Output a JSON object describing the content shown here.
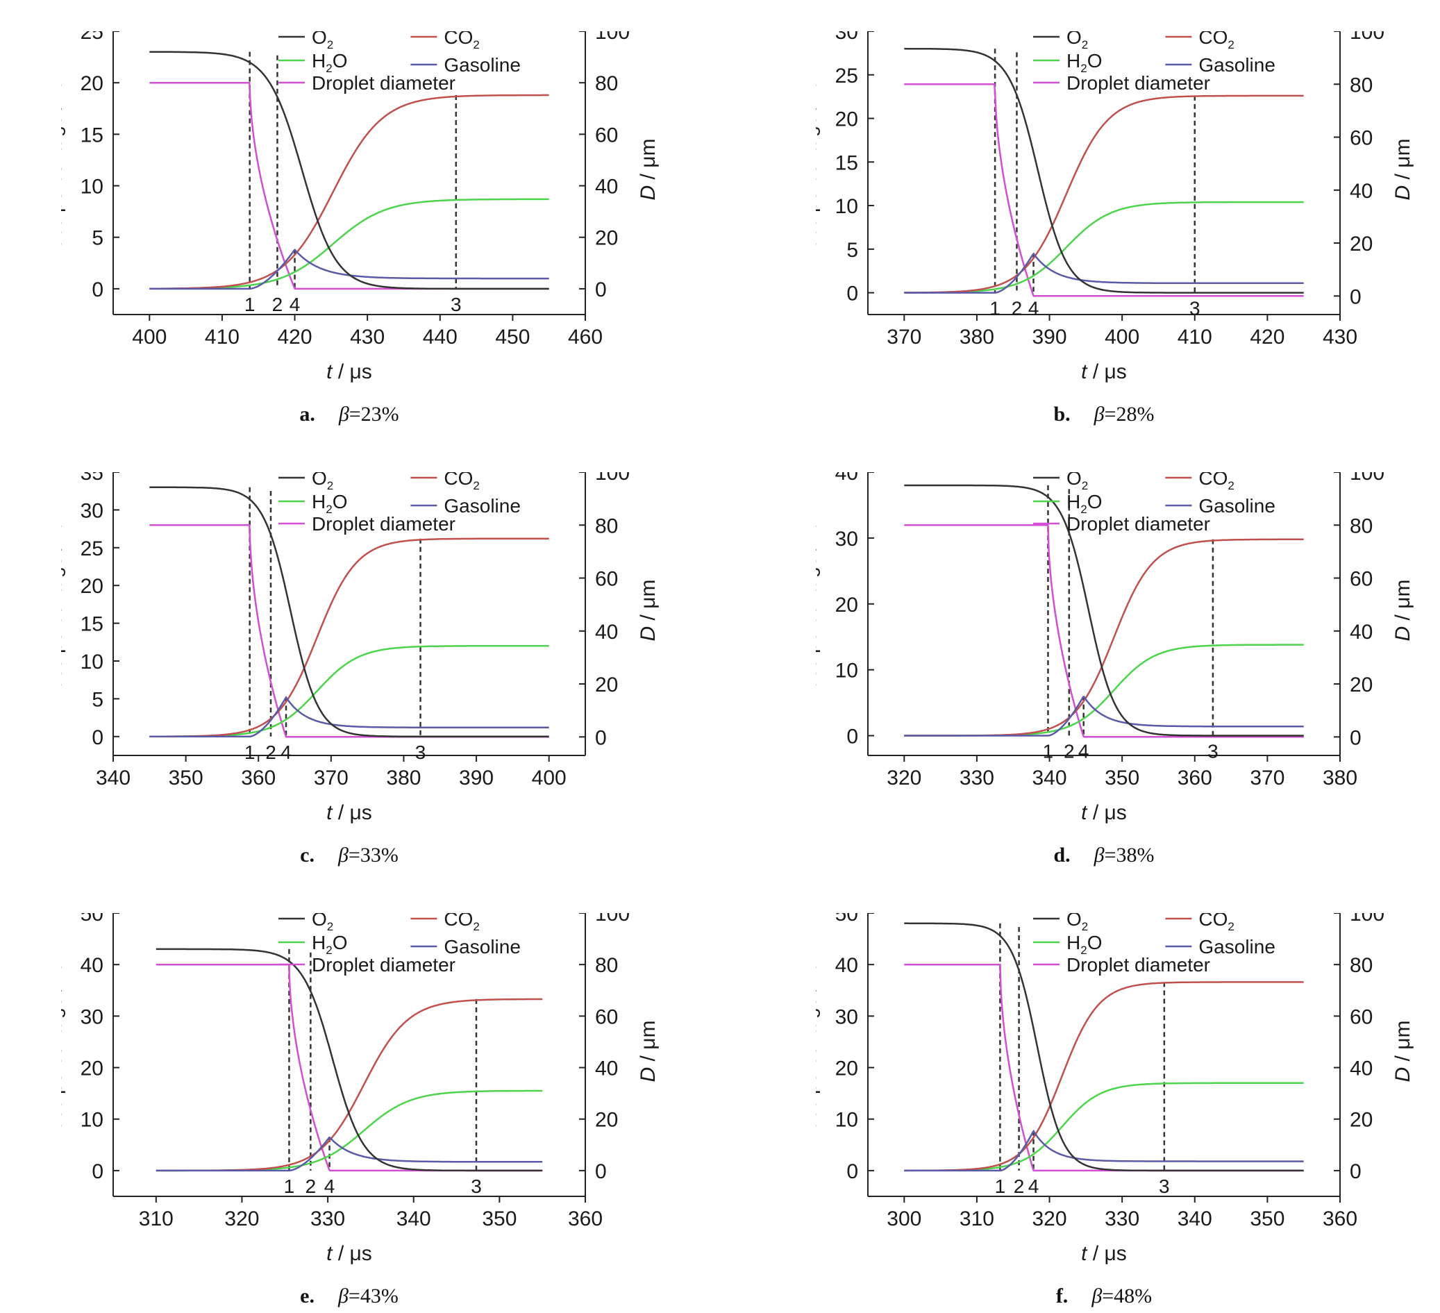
{
  "figure": {
    "panels": [
      {
        "id": "a",
        "letter": "a.",
        "beta_text": "=23%",
        "chart_data": {
          "type": "line",
          "xlabel_italic": "t",
          "xlabel_unit": " / μs",
          "ylabel": "mass percentage / %",
          "y2label_italic": "D",
          "y2label_unit": " / μm",
          "xlim": [
            395,
            460
          ],
          "xticks": [
            400,
            410,
            420,
            430,
            440,
            450,
            460
          ],
          "ylim": [
            -2.5,
            25
          ],
          "yticks": [
            0,
            5,
            10,
            15,
            20,
            25
          ],
          "y2lim": [
            -10,
            100
          ],
          "y2ticks": [
            0,
            20,
            40,
            60,
            80,
            100
          ],
          "t1": 413.8,
          "t2": 417.6,
          "t3": 442.2,
          "t4": 420.0,
          "O2_init": 23.0,
          "CO2_final": 18.8,
          "H2O_final": 8.7,
          "gas_peak": 3.8,
          "gas_final": 1.0,
          "drop_init": 80,
          "xstart": 400,
          "xend": 455,
          "markers": [
            {
              "label": "1",
              "x": 413.8
            },
            {
              "label": "2",
              "x": 417.6
            },
            {
              "label": "4",
              "x": 420.0
            },
            {
              "label": "3",
              "x": 442.2
            }
          ],
          "series": [
            {
              "name": "O2",
              "color": "#333333"
            },
            {
              "name": "CO2",
              "color": "#c0504d"
            },
            {
              "name": "H2O",
              "color": "#4cd44c"
            },
            {
              "name": "Gasoline",
              "color": "#5a5aa8"
            },
            {
              "name": "Droplet diameter",
              "color": "#d24fd2"
            }
          ]
        }
      },
      {
        "id": "b",
        "letter": "b.",
        "beta_text": "=28%",
        "chart_data": {
          "type": "line",
          "xlabel_italic": "t",
          "xlabel_unit": " / μs",
          "ylabel": "mass percentage / %",
          "y2label_italic": "D",
          "y2label_unit": " / μm",
          "xlim": [
            365,
            430
          ],
          "xticks": [
            370,
            380,
            390,
            400,
            410,
            420,
            430
          ],
          "ylim": [
            -2.5,
            30
          ],
          "yticks": [
            0,
            5,
            10,
            15,
            20,
            25,
            30
          ],
          "y2lim": [
            -7,
            100
          ],
          "y2ticks": [
            0,
            20,
            40,
            60,
            80,
            100
          ],
          "t1": 382.5,
          "t2": 385.5,
          "t3": 410.0,
          "t4": 387.8,
          "O2_init": 28.0,
          "CO2_final": 22.6,
          "H2O_final": 10.4,
          "gas_peak": 4.5,
          "gas_final": 1.1,
          "drop_init": 80,
          "xstart": 370,
          "xend": 425,
          "markers": [
            {
              "label": "1",
              "x": 382.5
            },
            {
              "label": "2",
              "x": 385.5
            },
            {
              "label": "4",
              "x": 387.8
            },
            {
              "label": "3",
              "x": 410.0
            }
          ],
          "series": [
            {
              "name": "O2",
              "color": "#333333"
            },
            {
              "name": "CO2",
              "color": "#c0504d"
            },
            {
              "name": "H2O",
              "color": "#4cd44c"
            },
            {
              "name": "Gasoline",
              "color": "#5a5aa8"
            },
            {
              "name": "Droplet diameter",
              "color": "#d24fd2"
            }
          ]
        }
      },
      {
        "id": "c",
        "letter": "c.",
        "beta_text": "=33%",
        "chart_data": {
          "type": "line",
          "xlabel_italic": "t",
          "xlabel_unit": " / μs",
          "ylabel": "mass percentage / %",
          "y2label_italic": "D",
          "y2label_unit": " / μm",
          "xlim": [
            340,
            405
          ],
          "xticks": [
            340,
            350,
            360,
            370,
            380,
            390,
            400
          ],
          "ylim": [
            -2.5,
            35
          ],
          "yticks": [
            0,
            5,
            10,
            15,
            20,
            25,
            30,
            35
          ],
          "y2lim": [
            -7,
            100
          ],
          "y2ticks": [
            0,
            20,
            40,
            60,
            80,
            100
          ],
          "t1": 358.8,
          "t2": 361.7,
          "t3": 382.3,
          "t4": 363.8,
          "O2_init": 33.0,
          "CO2_final": 26.2,
          "H2O_final": 12.0,
          "gas_peak": 5.2,
          "gas_final": 1.2,
          "drop_init": 80,
          "xstart": 345,
          "xend": 400,
          "markers": [
            {
              "label": "1",
              "x": 358.8
            },
            {
              "label": "2",
              "x": 361.7
            },
            {
              "label": "4",
              "x": 363.8
            },
            {
              "label": "3",
              "x": 382.3
            }
          ],
          "series": [
            {
              "name": "O2",
              "color": "#333333"
            },
            {
              "name": "CO2",
              "color": "#c0504d"
            },
            {
              "name": "H2O",
              "color": "#4cd44c"
            },
            {
              "name": "Gasoline",
              "color": "#5a5aa8"
            },
            {
              "name": "Droplet diameter",
              "color": "#d24fd2"
            }
          ]
        }
      },
      {
        "id": "d",
        "letter": "d.",
        "beta_text": "=38%",
        "chart_data": {
          "type": "line",
          "xlabel_italic": "t",
          "xlabel_unit": " / μs",
          "ylabel": "mass percentage / %",
          "y2label_italic": "D",
          "y2label_unit": " / μm",
          "xlim": [
            315,
            380
          ],
          "xticks": [
            320,
            330,
            340,
            350,
            360,
            370,
            380
          ],
          "ylim": [
            -3,
            40
          ],
          "yticks": [
            0,
            10,
            20,
            30,
            40
          ],
          "y2lim": [
            -7,
            100
          ],
          "y2ticks": [
            0,
            20,
            40,
            60,
            80,
            100
          ],
          "t1": 339.8,
          "t2": 342.7,
          "t3": 362.5,
          "t4": 344.7,
          "O2_init": 38.0,
          "CO2_final": 29.8,
          "H2O_final": 13.8,
          "gas_peak": 6.0,
          "gas_final": 1.4,
          "drop_init": 80,
          "xstart": 320,
          "xend": 375,
          "markers": [
            {
              "label": "1",
              "x": 339.8
            },
            {
              "label": "2",
              "x": 342.7
            },
            {
              "label": "4",
              "x": 344.7
            },
            {
              "label": "3",
              "x": 362.5
            }
          ],
          "series": [
            {
              "name": "O2",
              "color": "#333333"
            },
            {
              "name": "CO2",
              "color": "#c0504d"
            },
            {
              "name": "H2O",
              "color": "#4cd44c"
            },
            {
              "name": "Gasoline",
              "color": "#5a5aa8"
            },
            {
              "name": "Droplet diameter",
              "color": "#d24fd2"
            }
          ]
        }
      },
      {
        "id": "e",
        "letter": "e.",
        "beta_text": "=43%",
        "chart_data": {
          "type": "line",
          "xlabel_italic": "t",
          "xlabel_unit": " / μs",
          "ylabel": "mass percentage / %",
          "y2label_italic": "D",
          "y2label_unit": " / μm",
          "xlim": [
            305,
            360
          ],
          "xticks": [
            310,
            320,
            330,
            340,
            350,
            360
          ],
          "ylim": [
            -5,
            50
          ],
          "yticks": [
            0,
            10,
            20,
            30,
            40,
            50
          ],
          "y2lim": [
            -10,
            100
          ],
          "y2ticks": [
            0,
            20,
            40,
            60,
            80,
            100
          ],
          "t1": 325.5,
          "t2": 328.0,
          "t3": 347.3,
          "t4": 330.2,
          "O2_init": 43.0,
          "CO2_final": 33.3,
          "H2O_final": 15.5,
          "gas_peak": 6.5,
          "gas_final": 1.7,
          "drop_init": 80,
          "xstart": 310,
          "xend": 355,
          "markers": [
            {
              "label": "1",
              "x": 325.5
            },
            {
              "label": "2",
              "x": 328.0
            },
            {
              "label": "4",
              "x": 330.2
            },
            {
              "label": "3",
              "x": 347.3
            }
          ],
          "series": [
            {
              "name": "O2",
              "color": "#333333"
            },
            {
              "name": "CO2",
              "color": "#c0504d"
            },
            {
              "name": "H2O",
              "color": "#4cd44c"
            },
            {
              "name": "Gasoline",
              "color": "#5a5aa8"
            },
            {
              "name": "Droplet diameter",
              "color": "#d24fd2"
            }
          ]
        }
      },
      {
        "id": "f",
        "letter": "f.",
        "beta_text": "=48%",
        "chart_data": {
          "type": "line",
          "xlabel_italic": "t",
          "xlabel_unit": " / μs",
          "ylabel": "mass percentage / %",
          "y2label_italic": "D",
          "y2label_unit": " / μm",
          "xlim": [
            295,
            360
          ],
          "xticks": [
            300,
            310,
            320,
            330,
            340,
            350,
            360
          ],
          "ylim": [
            -5,
            50
          ],
          "yticks": [
            0,
            10,
            20,
            30,
            40,
            50
          ],
          "y2lim": [
            -10,
            100
          ],
          "y2ticks": [
            0,
            20,
            40,
            60,
            80,
            100
          ],
          "t1": 313.2,
          "t2": 315.8,
          "t3": 335.8,
          "t4": 317.8,
          "O2_init": 48.0,
          "CO2_final": 36.6,
          "H2O_final": 17.0,
          "gas_peak": 7.7,
          "gas_final": 1.8,
          "drop_init": 80,
          "xstart": 300,
          "xend": 355,
          "markers": [
            {
              "label": "1",
              "x": 313.2
            },
            {
              "label": "2",
              "x": 315.8
            },
            {
              "label": "4",
              "x": 317.8
            },
            {
              "label": "3",
              "x": 335.8
            }
          ],
          "series": [
            {
              "name": "O2",
              "color": "#333333"
            },
            {
              "name": "CO2",
              "color": "#c0504d"
            },
            {
              "name": "H2O",
              "color": "#4cd44c"
            },
            {
              "name": "Gasoline",
              "color": "#5a5aa8"
            },
            {
              "name": "Droplet diameter",
              "color": "#d24fd2"
            }
          ]
        }
      }
    ]
  }
}
